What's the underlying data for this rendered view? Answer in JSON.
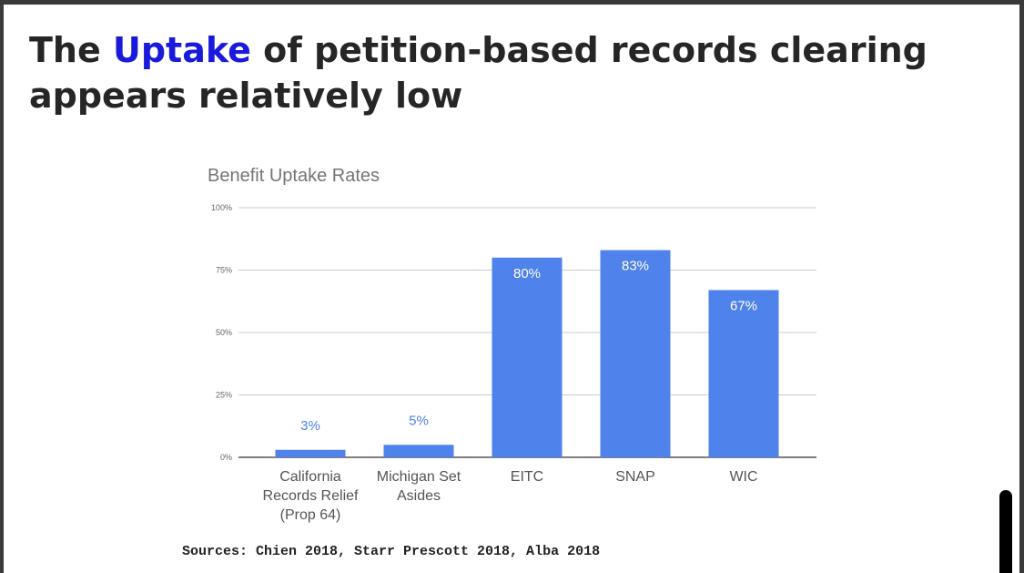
{
  "slide": {
    "title_before": "The ",
    "title_highlight": "Uptake",
    "title_after": " of petition-based records clearing appears relatively low",
    "sources": "Sources: Chien 2018, Starr Prescott 2018, Alba 2018"
  },
  "colors": {
    "accent": "#1a1adb",
    "bar": "#4f82ea",
    "label_outside": "#4f82ea",
    "label_inside": "#ffffff",
    "grid": "#cccccc"
  },
  "chart_data": {
    "type": "bar",
    "title": "Benefit Uptake Rates",
    "categories": [
      [
        "California",
        "Records Relief",
        "(Prop 64)"
      ],
      [
        "Michigan Set",
        "Asides"
      ],
      [
        "EITC"
      ],
      [
        "SNAP"
      ],
      [
        "WIC"
      ]
    ],
    "values": [
      3,
      5,
      80,
      83,
      67
    ],
    "value_labels": [
      "3%",
      "5%",
      "80%",
      "83%",
      "67%"
    ],
    "yticks": [
      0,
      25,
      50,
      75,
      100
    ],
    "ytick_labels": [
      "0%",
      "25%",
      "50%",
      "75%",
      "100%"
    ],
    "ylim": [
      0,
      100
    ],
    "grid": true,
    "legend": "none",
    "xlabel": "",
    "ylabel": ""
  }
}
